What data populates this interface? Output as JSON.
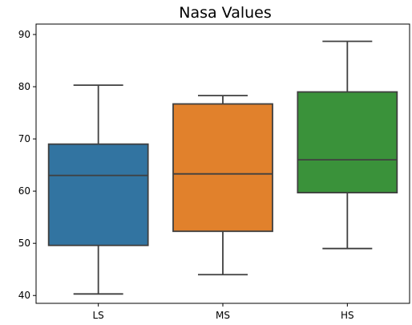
{
  "chart_data": {
    "type": "box",
    "title": "Nasa Values",
    "xlabel": "",
    "ylabel": "",
    "ylim": [
      38.5,
      92
    ],
    "yticks": [
      40,
      50,
      60,
      70,
      80,
      90
    ],
    "grid": false,
    "categories": [
      "LS",
      "MS",
      "HS"
    ],
    "boxes": [
      {
        "label": "LS",
        "color": "#3274a1",
        "whisker_low": 40.3,
        "q1": 49.6,
        "median": 63.0,
        "q3": 69.0,
        "whisker_high": 80.3
      },
      {
        "label": "MS",
        "color": "#e1812c",
        "whisker_low": 44.0,
        "q1": 52.3,
        "median": 63.3,
        "q3": 76.7,
        "whisker_high": 78.3
      },
      {
        "label": "HS",
        "color": "#3a923a",
        "whisker_low": 49.0,
        "q1": 59.7,
        "median": 66.0,
        "q3": 79.0,
        "whisker_high": 88.7
      }
    ]
  }
}
